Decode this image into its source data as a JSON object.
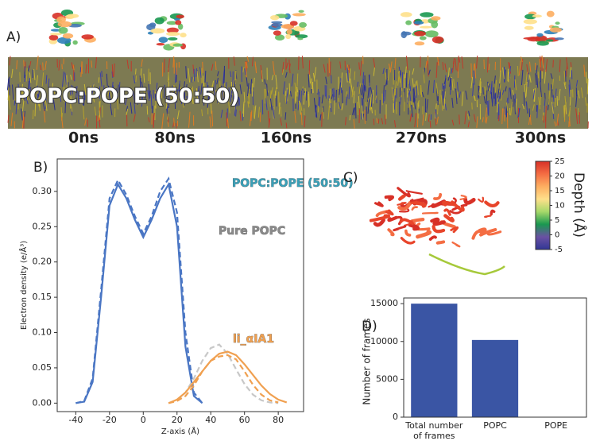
{
  "membrane_figure": {
    "label": "A)",
    "membrane_label": "POPC:POPE (50:50)",
    "times": [
      "0ns",
      "80ns",
      "160ns",
      "270ns",
      "300ns"
    ]
  },
  "chart_data": [
    {
      "type": "line",
      "label": "B)",
      "x_label": "Z-axis (Å)",
      "y_label": "Electron density (e/Å³)",
      "x": [
        -40,
        -35,
        -30,
        -25,
        -20,
        -15,
        -10,
        -5,
        0,
        5,
        10,
        15,
        20,
        25,
        30,
        35,
        40,
        45,
        50,
        55,
        60,
        65,
        70,
        75,
        80,
        85
      ],
      "series": [
        {
          "color": "#4a76c4",
          "dash": false,
          "values": [
            0,
            0.002,
            0.03,
            0.15,
            0.28,
            0.31,
            0.29,
            0.26,
            0.235,
            0.26,
            0.29,
            0.31,
            0.25,
            0.08,
            0.01,
            0,
            null,
            null,
            null,
            null,
            null,
            null,
            null,
            null,
            null,
            null
          ]
        },
        {
          "color": "#4a76c4",
          "dash": true,
          "values": [
            0,
            0.003,
            0.035,
            0.16,
            0.29,
            0.316,
            0.295,
            0.265,
            0.24,
            0.265,
            0.3,
            0.318,
            0.27,
            0.1,
            0.015,
            0,
            null,
            null,
            null,
            null,
            null,
            null,
            null,
            null,
            null,
            null
          ]
        },
        {
          "color": "#c8c8c8",
          "dash": true,
          "values": [
            null,
            null,
            null,
            null,
            null,
            null,
            null,
            null,
            null,
            null,
            null,
            0,
            0.004,
            0.015,
            0.035,
            0.06,
            0.078,
            0.083,
            0.07,
            0.048,
            0.027,
            0.012,
            0.004,
            0.001,
            0,
            null
          ]
        },
        {
          "color": "#f0a050",
          "dash": true,
          "values": [
            null,
            null,
            null,
            null,
            null,
            null,
            null,
            null,
            null,
            null,
            null,
            0,
            0.003,
            0.01,
            0.025,
            0.045,
            0.06,
            0.066,
            0.068,
            0.062,
            0.045,
            0.026,
            0.012,
            0.004,
            0.001,
            null
          ]
        },
        {
          "color": "#f0a050",
          "dash": false,
          "values": [
            null,
            null,
            null,
            null,
            null,
            null,
            null,
            null,
            null,
            null,
            null,
            0,
            0.005,
            0.015,
            0.03,
            0.045,
            0.06,
            0.07,
            0.073,
            0.068,
            0.055,
            0.04,
            0.025,
            0.013,
            0.005,
            0.001
          ]
        }
      ],
      "annotations": [
        {
          "text": "POPC:POPE (50:50)",
          "color": "#3aa0b8"
        },
        {
          "text": "Pure POPC",
          "color": "#8a8a8a"
        },
        {
          "text": "li_αIA1",
          "color": "#f0a050"
        }
      ],
      "xlim": [
        -51,
        95
      ],
      "ylim": [
        -0.012,
        0.346
      ],
      "xticks": [
        -40,
        -20,
        0,
        20,
        40,
        60,
        80
      ],
      "yticks": [
        {
          "value": 0,
          "label": "0.00"
        },
        0.05,
        {
          "value": 0.1,
          "label": "0.10"
        },
        0.15,
        {
          "value": 0.2,
          "label": "0.20"
        },
        0.25,
        {
          "value": 0.3,
          "label": "0.30"
        }
      ]
    },
    {
      "type": "colorbar",
      "label": "C)",
      "title": "Depth (Å)",
      "clim": [
        -5,
        25
      ],
      "ticks": [
        25,
        20,
        15,
        10,
        5,
        0,
        -5
      ],
      "colors": [
        "#d73027",
        "#f46d43",
        "#fdae61",
        "#fee08b",
        "#a6d96a",
        "#1a9850",
        "#6a51a3",
        "#313695"
      ]
    },
    {
      "type": "bar",
      "label": "D)",
      "y_label": "Number of frames",
      "categories": [
        "Total number\nof frames",
        "POPC",
        "POPE"
      ],
      "values": [
        15000,
        10200,
        50
      ],
      "color": "#3a55a4",
      "ylim": [
        0,
        15750
      ],
      "yticks": [
        0,
        5000,
        10000,
        15000
      ]
    }
  ]
}
